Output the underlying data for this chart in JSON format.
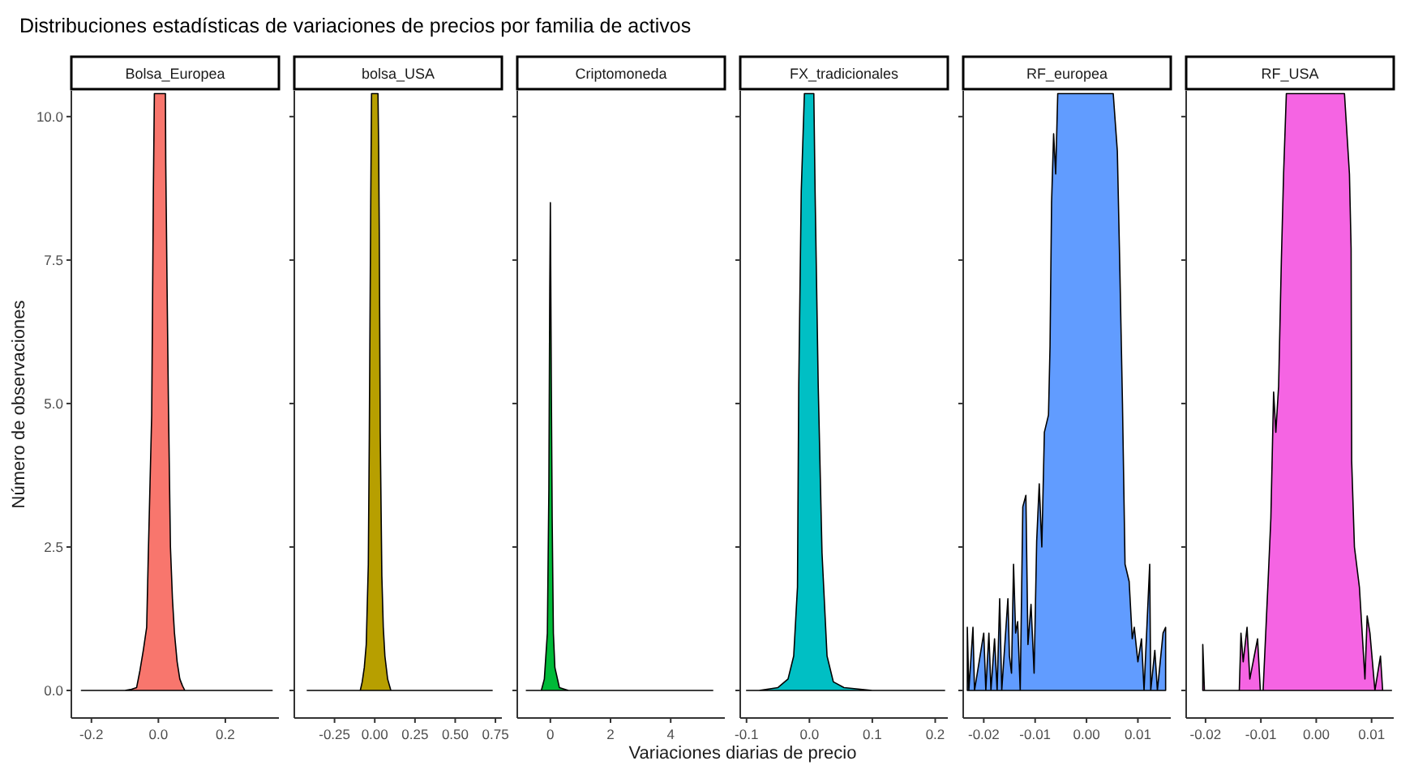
{
  "chart_data": [
    {
      "type": "area",
      "title": "Bolsa_Europea",
      "annotations": [
        "Distribuciones estadísticas de variaciones de precios por familia de activos"
      ],
      "ylabel": "Número de observaciones",
      "xlim": [
        -0.26,
        0.36
      ],
      "xticks": [
        {
          "value": -0.2,
          "label": "-0.2"
        },
        {
          "value": 0,
          "label": "0.0"
        },
        {
          "value": 0.2,
          "label": "0.2"
        }
      ],
      "ylim": [
        -0.48,
        10.45
      ],
      "yticks": [
        {
          "value": 0,
          "label": "0.0"
        },
        {
          "value": 2.5,
          "label": "2.5"
        },
        {
          "value": 5,
          "label": "5.0"
        },
        {
          "value": 7.5,
          "label": "7.5"
        },
        {
          "value": 10,
          "label": "10.0"
        }
      ],
      "grid": false,
      "series": [
        {
          "color": "#f8766d",
          "x": [
            -0.23,
            -0.1,
            -0.08,
            -0.065,
            -0.055,
            -0.045,
            -0.035,
            -0.03,
            -0.025,
            -0.02,
            -0.015,
            -0.012,
            0.021,
            0.022,
            0.026,
            0.03,
            0.036,
            0.042,
            0.048,
            0.056,
            0.064,
            0.072,
            0.079,
            0.34
          ],
          "values": [
            0,
            0,
            0.02,
            0.05,
            0.35,
            0.7,
            1.1,
            2.4,
            3.6,
            4.8,
            8.7,
            10.4,
            10.4,
            9.2,
            7,
            5,
            2.5,
            1.6,
            1,
            0.5,
            0.2,
            0.08,
            0,
            0
          ]
        }
      ]
    },
    {
      "type": "area",
      "title": "bolsa_USA",
      "xlim": [
        -0.5,
        0.79
      ],
      "xticks": [
        {
          "value": -0.25,
          "label": "-0.25"
        },
        {
          "value": 0,
          "label": "0.00"
        },
        {
          "value": 0.25,
          "label": "0.25"
        },
        {
          "value": 0.5,
          "label": "0.50"
        },
        {
          "value": 0.75,
          "label": "0.75"
        }
      ],
      "ylim": [
        -0.48,
        10.45
      ],
      "yticks": [
        {
          "value": 0,
          "label": null
        },
        {
          "value": 2.5,
          "label": null
        },
        {
          "value": 5,
          "label": null
        },
        {
          "value": 7.5,
          "label": null
        },
        {
          "value": 10,
          "label": null
        }
      ],
      "tick_labels": "x",
      "grid": false,
      "series": [
        {
          "color": "#b79f00",
          "x": [
            -0.42,
            -0.09,
            -0.078,
            -0.065,
            -0.053,
            -0.04,
            -0.034,
            -0.025,
            -0.02,
            0.02,
            0.024,
            0.028,
            0.034,
            0.044,
            0.053,
            0.063,
            0.08,
            0.1,
            0.73
          ],
          "values": [
            0,
            0,
            0.15,
            0.4,
            0.8,
            2.2,
            4.4,
            8.5,
            10.4,
            10.4,
            9.5,
            8,
            4.5,
            2,
            1.1,
            0.6,
            0.2,
            0,
            0
          ]
        }
      ]
    },
    {
      "type": "area",
      "title": "Criptomoneda",
      "xlabel": "Variaciones diarias de precio",
      "xlim": [
        -1.1,
        5.8
      ],
      "xticks": [
        0,
        2,
        4
      ],
      "ylim": [
        -0.48,
        10.45
      ],
      "yticks": [
        {
          "value": 0,
          "label": null
        },
        {
          "value": 2.5,
          "label": null
        },
        {
          "value": 5,
          "label": null
        },
        {
          "value": 7.5,
          "label": null
        },
        {
          "value": 10,
          "label": null
        }
      ],
      "tick_labels": "x",
      "grid": false,
      "series": [
        {
          "color": "#00ba38",
          "x": [
            -0.8,
            -0.3,
            -0.2,
            -0.1,
            -0.05,
            -0.02,
            0,
            0.03,
            0.06,
            0.1,
            0.15,
            0.3,
            0.6,
            5.4
          ],
          "values": [
            0,
            0,
            0.2,
            1.0,
            3.5,
            7,
            8.5,
            5.5,
            3.0,
            1.0,
            0.4,
            0.05,
            0,
            0
          ]
        }
      ]
    },
    {
      "type": "area",
      "title": "FX_tradicionales",
      "xlim": [
        -0.11,
        0.22
      ],
      "xticks": [
        {
          "value": -0.1,
          "label": "-0.1"
        },
        {
          "value": 0,
          "label": "0.0"
        },
        {
          "value": 0.1,
          "label": "0.1"
        },
        {
          "value": 0.2,
          "label": "0.2"
        }
      ],
      "ylim": [
        -0.48,
        10.45
      ],
      "yticks": [
        {
          "value": 0,
          "label": null
        },
        {
          "value": 2.5,
          "label": null
        },
        {
          "value": 5,
          "label": null
        },
        {
          "value": 7.5,
          "label": null
        },
        {
          "value": 10,
          "label": null
        }
      ],
      "tick_labels": "x",
      "grid": false,
      "series": [
        {
          "color": "#00bfc4",
          "x": [
            -0.1,
            -0.08,
            -0.05,
            -0.034,
            -0.025,
            -0.019,
            -0.017,
            -0.013,
            -0.008,
            0.007,
            0.009,
            0.014,
            0.02,
            0.028,
            0.038,
            0.055,
            0.1,
            0.215
          ],
          "values": [
            0,
            0,
            0.05,
            0.2,
            0.6,
            1.8,
            5.3,
            8.7,
            10.4,
            10.4,
            8.7,
            5.3,
            2.4,
            0.6,
            0.15,
            0.05,
            0,
            0
          ]
        }
      ]
    },
    {
      "type": "area",
      "title": "RF_europea",
      "xlim": [
        -0.024,
        0.0164
      ],
      "xticks": [
        {
          "value": -0.02,
          "label": "-0.02"
        },
        {
          "value": -0.01,
          "label": "-0.01"
        },
        {
          "value": 0,
          "label": "0.00"
        },
        {
          "value": 0.01,
          "label": "0.01"
        }
      ],
      "ylim": [
        -0.48,
        10.45
      ],
      "yticks": [
        {
          "value": 0,
          "label": null
        },
        {
          "value": 2.5,
          "label": null
        },
        {
          "value": 5,
          "label": null
        },
        {
          "value": 7.5,
          "label": null
        },
        {
          "value": 10,
          "label": null
        }
      ],
      "tick_labels": "x",
      "grid": false,
      "series": [
        {
          "color": "#619cff",
          "x": [
            -0.0232,
            -0.0229,
            -0.0221,
            -0.0218,
            -0.02,
            -0.0196,
            -0.019,
            -0.0186,
            -0.0179,
            -0.0174,
            -0.0169,
            -0.0165,
            -0.0153,
            -0.015,
            -0.0146,
            -0.0142,
            -0.0138,
            -0.0134,
            -0.0129,
            -0.0124,
            -0.0118,
            -0.0114,
            -0.0108,
            -0.0102,
            -0.0097,
            -0.0092,
            -0.0087,
            -0.0082,
            -0.0074,
            -0.0071,
            -0.0068,
            -0.0064,
            -0.006,
            -0.0056,
            0.0052,
            0.006,
            0.0065,
            0.007,
            0.0075,
            0.0083,
            0.0089,
            0.0093,
            0.01,
            0.0107,
            0.0112,
            0.0123,
            0.0125,
            0.0133,
            0.0138,
            0.0149,
            0.0154
          ],
          "values": [
            1.1,
            0,
            1.1,
            0,
            1.0,
            0,
            1.0,
            0,
            0.9,
            0,
            1.6,
            0,
            1.6,
            0.6,
            0.3,
            2.2,
            1.0,
            1.2,
            0,
            3.2,
            3.4,
            0.8,
            1.5,
            0.3,
            2.6,
            3.6,
            2.5,
            4.5,
            4.8,
            6,
            8.5,
            9.7,
            9,
            10.4,
            10.4,
            9.4,
            7.3,
            5,
            2.2,
            1.9,
            0.9,
            1.1,
            0.5,
            0.9,
            0,
            2.2,
            0,
            0.7,
            0,
            1.0,
            1.1
          ]
        }
      ]
    },
    {
      "type": "area",
      "title": "RF_USA",
      "xlim": [
        -0.0235,
        0.014
      ],
      "xticks": [
        {
          "value": -0.02,
          "label": "-0.02"
        },
        {
          "value": -0.01,
          "label": "-0.01"
        },
        {
          "value": 0,
          "label": "0.00"
        },
        {
          "value": 0.01,
          "label": "0.01"
        }
      ],
      "ylim": [
        -0.48,
        10.45
      ],
      "yticks": [
        {
          "value": 0,
          "label": null
        },
        {
          "value": 2.5,
          "label": null
        },
        {
          "value": 5,
          "label": null
        },
        {
          "value": 7.5,
          "label": null
        },
        {
          "value": 10,
          "label": null
        }
      ],
      "tick_labels": "x",
      "grid": false,
      "series": [
        {
          "color": "#f564e3",
          "x": [
            -0.0205,
            -0.0202,
            -0.0139,
            -0.0136,
            -0.0132,
            -0.0125,
            -0.012,
            -0.0106,
            -0.0101,
            -0.0096,
            -0.0087,
            -0.0082,
            -0.0077,
            -0.0073,
            -0.0068,
            -0.0063,
            -0.0059,
            -0.0054,
            0.0051,
            0.006,
            0.0063,
            0.0064,
            0.0069,
            0.0078,
            0.0088,
            0.0092,
            0.0097,
            0.0106,
            0.0116,
            0.012,
            0.0136
          ],
          "values": [
            0.8,
            0,
            0,
            1.0,
            0.5,
            1.1,
            0.2,
            0.9,
            0,
            0,
            1.9,
            3,
            5.2,
            4.5,
            5.3,
            7.5,
            9,
            10.4,
            10.4,
            9,
            7.7,
            4,
            2.5,
            1.8,
            0.2,
            1.3,
            1.0,
            0,
            0.6,
            0,
            0
          ]
        }
      ]
    }
  ]
}
